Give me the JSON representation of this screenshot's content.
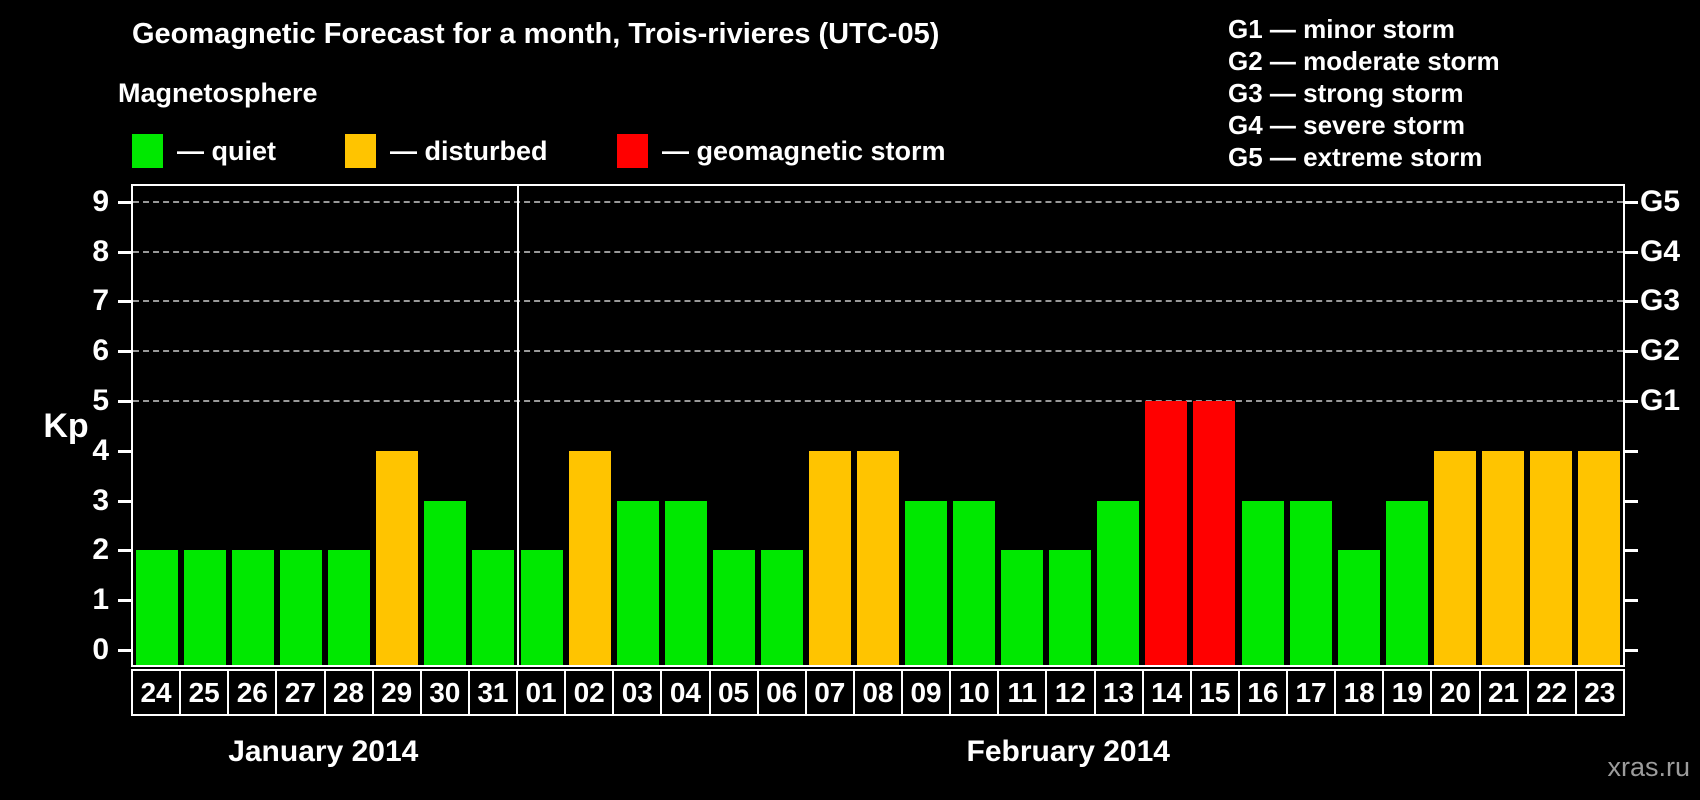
{
  "title": "Geomagnetic Forecast for a month, Trois-rivieres (UTC-05)",
  "magnetosphere_legend": {
    "heading": "Magnetosphere",
    "items": [
      {
        "key": "quiet",
        "label": "— quiet",
        "color": "#00e800"
      },
      {
        "key": "disturbed",
        "label": "— disturbed",
        "color": "#ffc400"
      },
      {
        "key": "storm",
        "label": "— geomagnetic storm",
        "color": "#ff0000"
      }
    ]
  },
  "g_legend": {
    "items": [
      "G1 — minor storm",
      "G2 — moderate storm",
      "G3 — strong storm",
      "G4 — severe storm",
      "G5 — extreme storm"
    ]
  },
  "watermark": "xras.ru",
  "chart_data": {
    "type": "bar",
    "ylabel": "Kp",
    "ylim": [
      0,
      9
    ],
    "y_ticks": [
      0,
      1,
      2,
      3,
      4,
      5,
      6,
      7,
      8,
      9
    ],
    "gridline_levels": [
      5,
      6,
      7,
      8,
      9
    ],
    "right_axis_labels": [
      {
        "level": 5,
        "label": "G1"
      },
      {
        "level": 6,
        "label": "G2"
      },
      {
        "level": 7,
        "label": "G3"
      },
      {
        "level": 8,
        "label": "G4"
      },
      {
        "level": 9,
        "label": "G5"
      }
    ],
    "months": [
      {
        "label": "January 2014",
        "count": 8
      },
      {
        "label": "February 2014",
        "count": 23
      }
    ],
    "status_colors": {
      "quiet": "#00e800",
      "disturbed": "#ffc400",
      "storm": "#ff0000"
    },
    "bars": [
      {
        "day": "24",
        "kp": 2,
        "status": "quiet"
      },
      {
        "day": "25",
        "kp": 2,
        "status": "quiet"
      },
      {
        "day": "26",
        "kp": 2,
        "status": "quiet"
      },
      {
        "day": "27",
        "kp": 2,
        "status": "quiet"
      },
      {
        "day": "28",
        "kp": 2,
        "status": "quiet"
      },
      {
        "day": "29",
        "kp": 4,
        "status": "disturbed"
      },
      {
        "day": "30",
        "kp": 3,
        "status": "quiet"
      },
      {
        "day": "31",
        "kp": 2,
        "status": "quiet"
      },
      {
        "day": "01",
        "kp": 2,
        "status": "quiet"
      },
      {
        "day": "02",
        "kp": 4,
        "status": "disturbed"
      },
      {
        "day": "03",
        "kp": 3,
        "status": "quiet"
      },
      {
        "day": "04",
        "kp": 3,
        "status": "quiet"
      },
      {
        "day": "05",
        "kp": 2,
        "status": "quiet"
      },
      {
        "day": "06",
        "kp": 2,
        "status": "quiet"
      },
      {
        "day": "07",
        "kp": 4,
        "status": "disturbed"
      },
      {
        "day": "08",
        "kp": 4,
        "status": "disturbed"
      },
      {
        "day": "09",
        "kp": 3,
        "status": "quiet"
      },
      {
        "day": "10",
        "kp": 3,
        "status": "quiet"
      },
      {
        "day": "11",
        "kp": 2,
        "status": "quiet"
      },
      {
        "day": "12",
        "kp": 2,
        "status": "quiet"
      },
      {
        "day": "13",
        "kp": 3,
        "status": "quiet"
      },
      {
        "day": "14",
        "kp": 5,
        "status": "storm"
      },
      {
        "day": "15",
        "kp": 5,
        "status": "storm"
      },
      {
        "day": "16",
        "kp": 3,
        "status": "quiet"
      },
      {
        "day": "17",
        "kp": 3,
        "status": "quiet"
      },
      {
        "day": "18",
        "kp": 2,
        "status": "quiet"
      },
      {
        "day": "19",
        "kp": 3,
        "status": "quiet"
      },
      {
        "day": "20",
        "kp": 4,
        "status": "disturbed"
      },
      {
        "day": "21",
        "kp": 4,
        "status": "disturbed"
      },
      {
        "day": "22",
        "kp": 4,
        "status": "disturbed"
      },
      {
        "day": "23",
        "kp": 4,
        "status": "disturbed"
      }
    ]
  }
}
